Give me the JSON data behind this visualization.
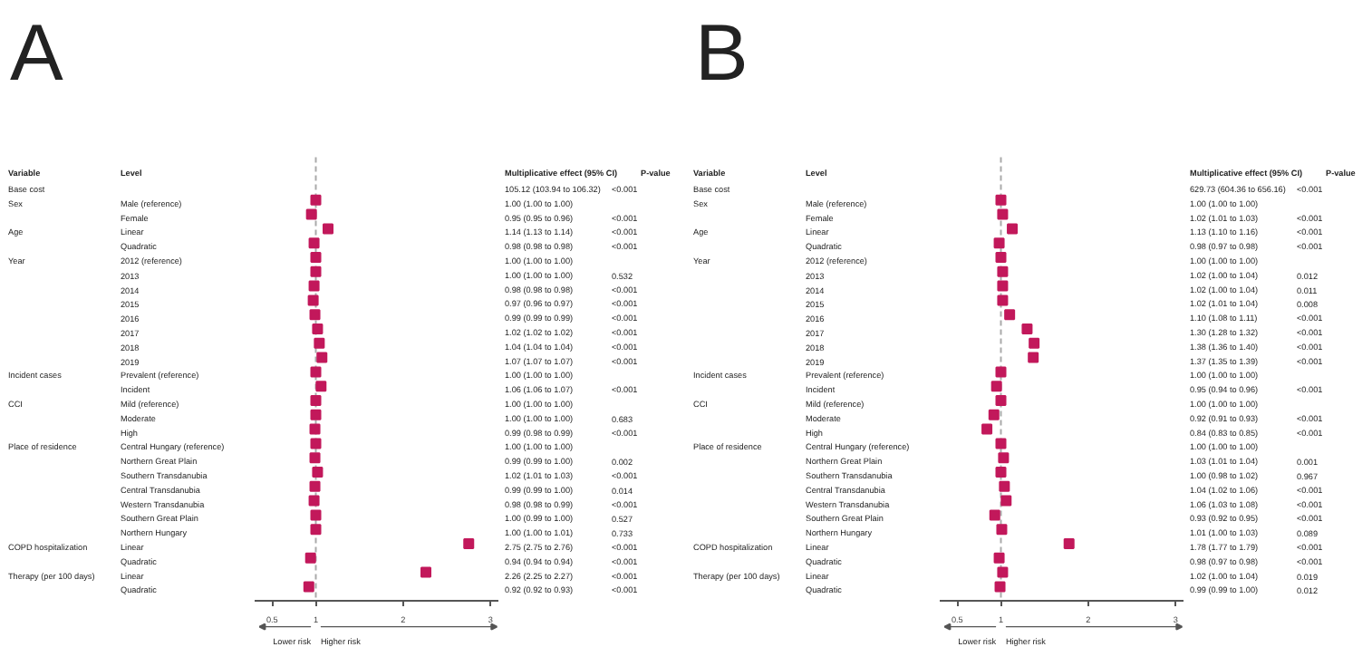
{
  "chart_data": [
    {
      "type": "scatter",
      "orientation": "horizontal",
      "title": "A",
      "color": "#c2185b",
      "marker": "square",
      "grid": false,
      "legend": false,
      "annotations": [
        "Variable",
        "Level",
        "Multiplicative effect (95% CI)",
        "P-value",
        "Lower risk",
        "Higher risk"
      ],
      "y_categories": [
        "Base cost",
        "Sex",
        null,
        "Age",
        null,
        "Year",
        null,
        null,
        null,
        null,
        null,
        null,
        null,
        "Incident cases",
        null,
        "CCI",
        null,
        null,
        "Place of residence",
        null,
        null,
        null,
        null,
        null,
        null,
        "COPD hospitalization",
        null,
        "Therapy (per 100 days)",
        null
      ],
      "categories": [
        null,
        "Male (reference)",
        "Female",
        "Linear",
        "Quadratic",
        "2012 (reference)",
        "2013",
        "2014",
        "2015",
        "2016",
        "2017",
        "2018",
        "2019",
        "Prevalent (reference)",
        "Incident",
        "Mild (reference)",
        "Moderate",
        "High",
        "Central Hungary (reference)",
        "Northern Great Plain",
        "Southern Transdanubia",
        "Central Transdanubia",
        "Western Transdanubia",
        "Southern Great Plain",
        "Northern Hungary",
        "Linear",
        "Quadratic",
        "Linear",
        "Quadratic"
      ],
      "values": [
        null,
        1.0,
        0.95,
        1.14,
        0.98,
        1.0,
        1.0,
        0.98,
        0.97,
        0.99,
        1.02,
        1.04,
        1.07,
        1.0,
        1.06,
        1.0,
        1.0,
        0.99,
        1.0,
        0.99,
        1.02,
        0.99,
        0.98,
        1.0,
        1.0,
        2.75,
        0.94,
        2.26,
        0.92
      ],
      "value_labels": [
        "105.12 (103.94 to 106.32)",
        "1.00 (1.00 to 1.00)",
        "0.95 (0.95 to 0.96)",
        "1.14 (1.13 to 1.14)",
        "0.98 (0.98 to 0.98)",
        "1.00 (1.00 to 1.00)",
        "1.00 (1.00 to 1.00)",
        "0.98 (0.98 to 0.98)",
        "0.97 (0.96 to 0.97)",
        "0.99 (0.99 to 0.99)",
        "1.02 (1.02 to 1.02)",
        "1.04 (1.04 to 1.04)",
        "1.07 (1.07 to 1.07)",
        "1.00 (1.00 to 1.00)",
        "1.06 (1.06 to 1.07)",
        "1.00 (1.00 to 1.00)",
        "1.00 (1.00 to 1.00)",
        "0.99 (0.98 to 0.99)",
        "1.00 (1.00 to 1.00)",
        "0.99 (0.99 to 1.00)",
        "1.02 (1.01 to 1.03)",
        "0.99 (0.99 to 1.00)",
        "0.98 (0.98 to 0.99)",
        "1.00 (0.99 to 1.00)",
        "1.00 (1.00 to 1.01)",
        "2.75 (2.75 to 2.76)",
        "0.94 (0.94 to 0.94)",
        "2.26 (2.25 to 2.27)",
        "0.92 (0.92 to 0.93)"
      ],
      "y2_categories": [
        "<0.001",
        null,
        "<0.001",
        "<0.001",
        "<0.001",
        null,
        "0.532",
        "<0.001",
        "<0.001",
        "<0.001",
        "<0.001",
        "<0.001",
        "<0.001",
        null,
        "<0.001",
        null,
        "0.683",
        "<0.001",
        null,
        "0.002",
        "<0.001",
        "0.014",
        "<0.001",
        "0.527",
        "0.733",
        "<0.001",
        "<0.001",
        "<0.001",
        "<0.001"
      ],
      "xlim": [
        0.3,
        3.1
      ],
      "xticks": [
        0.5,
        1,
        2,
        3
      ],
      "ref_lines": [
        {
          "axis": "x",
          "value": 1,
          "line_style": "dashed",
          "color": "#aaaaaa"
        }
      ]
    },
    {
      "type": "scatter",
      "orientation": "horizontal",
      "title": "B",
      "color": "#c2185b",
      "marker": "square",
      "grid": false,
      "legend": false,
      "annotations": [
        "Variable",
        "Level",
        "Multiplicative effect (95% CI)",
        "P-value",
        "Lower risk",
        "Higher risk"
      ],
      "y_categories": [
        "Base cost",
        "Sex",
        null,
        "Age",
        null,
        "Year",
        null,
        null,
        null,
        null,
        null,
        null,
        null,
        "Incident cases",
        null,
        "CCI",
        null,
        null,
        "Place of residence",
        null,
        null,
        null,
        null,
        null,
        null,
        "COPD hospitalization",
        null,
        "Therapy (per 100 days)",
        null
      ],
      "categories": [
        null,
        "Male (reference)",
        "Female",
        "Linear",
        "Quadratic",
        "2012 (reference)",
        "2013",
        "2014",
        "2015",
        "2016",
        "2017",
        "2018",
        "2019",
        "Prevalent (reference)",
        "Incident",
        "Mild (reference)",
        "Moderate",
        "High",
        "Central Hungary (reference)",
        "Northern Great Plain",
        "Southern Transdanubia",
        "Central Transdanubia",
        "Western Transdanubia",
        "Southern Great Plain",
        "Northern Hungary",
        "Linear",
        "Quadratic",
        "Linear",
        "Quadratic"
      ],
      "values": [
        null,
        1.0,
        1.02,
        1.13,
        0.98,
        1.0,
        1.02,
        1.02,
        1.02,
        1.1,
        1.3,
        1.38,
        1.37,
        1.0,
        0.95,
        1.0,
        0.92,
        0.84,
        1.0,
        1.03,
        1.0,
        1.04,
        1.06,
        0.93,
        1.01,
        1.78,
        0.98,
        1.02,
        0.99
      ],
      "value_labels": [
        "629.73 (604.36 to 656.16)",
        "1.00 (1.00 to 1.00)",
        "1.02 (1.01 to 1.03)",
        "1.13 (1.10 to 1.16)",
        "0.98 (0.97 to 0.98)",
        "1.00 (1.00 to 1.00)",
        "1.02 (1.00 to 1.04)",
        "1.02 (1.00 to 1.04)",
        "1.02 (1.01 to 1.04)",
        "1.10 (1.08 to 1.11)",
        "1.30 (1.28 to 1.32)",
        "1.38 (1.36 to 1.40)",
        "1.37 (1.35 to 1.39)",
        "1.00 (1.00 to 1.00)",
        "0.95 (0.94 to 0.96)",
        "1.00 (1.00 to 1.00)",
        "0.92 (0.91 to 0.93)",
        "0.84 (0.83 to 0.85)",
        "1.00 (1.00 to 1.00)",
        "1.03 (1.01 to 1.04)",
        "1.00 (0.98 to 1.02)",
        "1.04 (1.02 to 1.06)",
        "1.06 (1.03 to 1.08)",
        "0.93 (0.92 to 0.95)",
        "1.01 (1.00 to 1.03)",
        "1.78 (1.77 to 1.79)",
        "0.98 (0.97 to 0.98)",
        "1.02 (1.00 to 1.04)",
        "0.99 (0.99 to 1.00)"
      ],
      "y2_categories": [
        "<0.001",
        null,
        "<0.001",
        "<0.001",
        "<0.001",
        null,
        "0.012",
        "0.011",
        "0.008",
        "<0.001",
        "<0.001",
        "<0.001",
        "<0.001",
        null,
        "<0.001",
        null,
        "<0.001",
        "<0.001",
        null,
        "0.001",
        "0.967",
        "<0.001",
        "<0.001",
        "<0.001",
        "0.089",
        "<0.001",
        "<0.001",
        "0.019",
        "0.012"
      ],
      "xlim": [
        0.3,
        3.1
      ],
      "xticks": [
        0.5,
        1,
        2,
        3
      ],
      "ref_lines": [
        {
          "axis": "x",
          "value": 1,
          "line_style": "dashed",
          "color": "#aaaaaa"
        }
      ]
    }
  ]
}
